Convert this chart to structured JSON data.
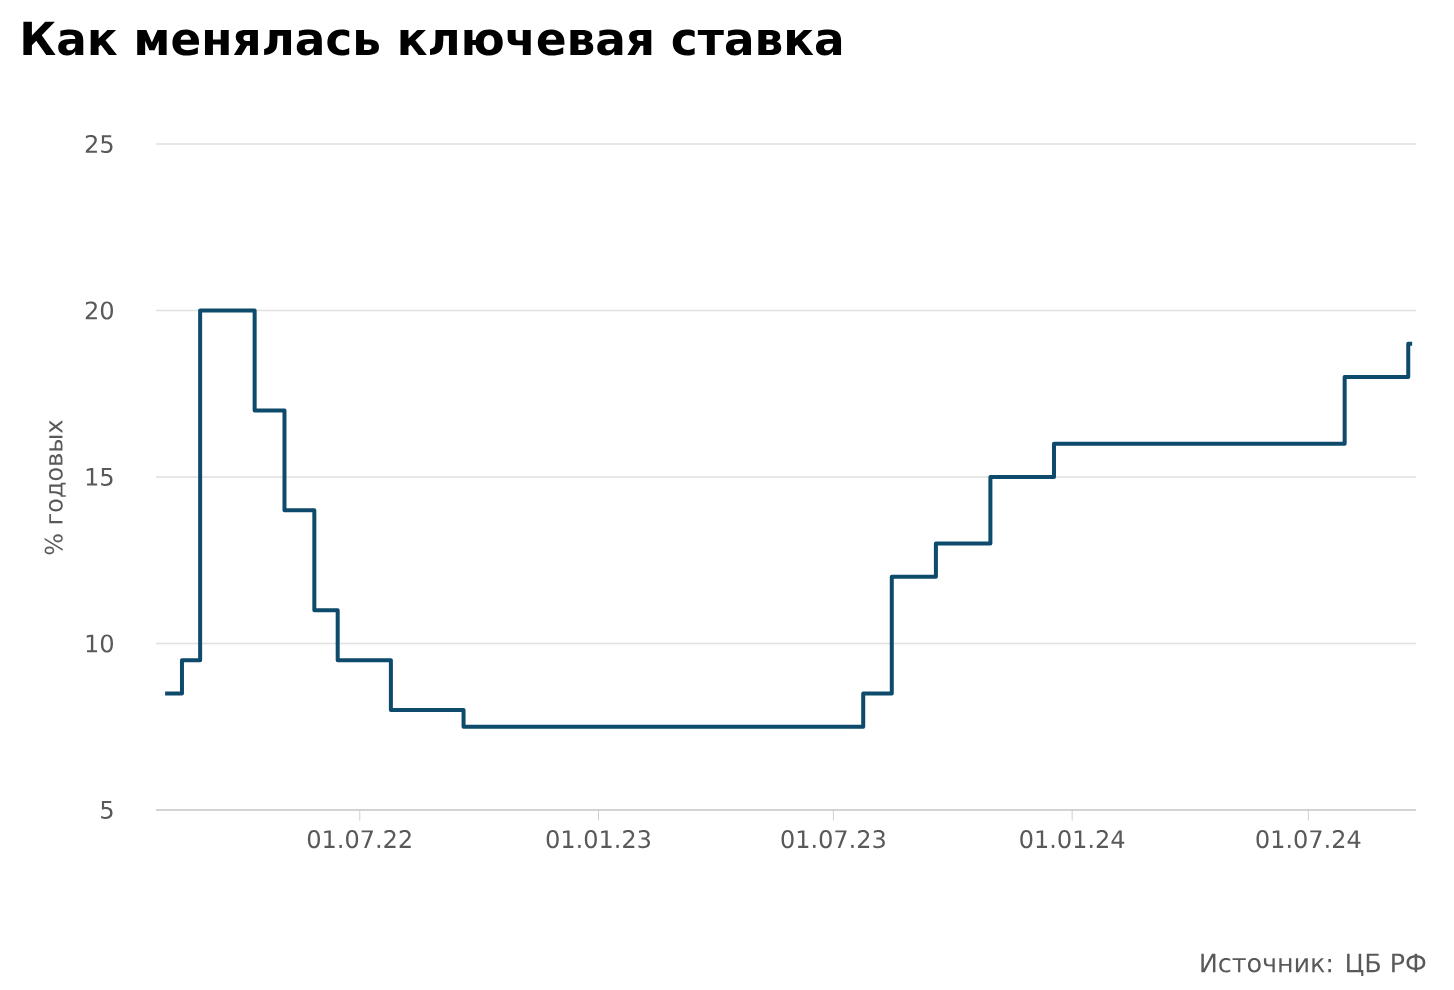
{
  "chart_data": {
    "type": "step",
    "title": "Как менялась ключевая ставка",
    "ylabel": "% годовых",
    "annotations": [
      "Источник: ЦБ РФ"
    ],
    "x": [
      "2022-02-01",
      "2022-02-14",
      "2022-02-28",
      "2022-04-11",
      "2022-05-04",
      "2022-05-27",
      "2022-06-14",
      "2022-07-25",
      "2022-09-19",
      "2023-07-24",
      "2023-08-15",
      "2023-09-18",
      "2023-10-30",
      "2023-12-18",
      "2024-07-29",
      "2024-09-16",
      "2024-09-19"
    ],
    "series": [
      {
        "color": "#0d4a6b",
        "values": [
          8.5,
          9.5,
          20,
          17,
          14,
          11,
          9.5,
          8,
          7.5,
          8.5,
          12,
          13,
          15,
          16,
          18,
          19,
          19
        ]
      }
    ],
    "xlim": [
      "2022-01-25",
      "2024-09-22"
    ],
    "xticks": [
      {
        "value": "2022-07-01",
        "label": "01.07.22"
      },
      {
        "value": "2023-01-01",
        "label": "01.01.23"
      },
      {
        "value": "2023-07-01",
        "label": "01.07.23"
      },
      {
        "value": "2024-01-01",
        "label": "01.01.24"
      },
      {
        "value": "2024-07-01",
        "label": "01.07.24"
      }
    ],
    "ylim": [
      5,
      25
    ],
    "yticks": [
      5,
      10,
      15,
      20,
      25
    ],
    "grid": "y"
  }
}
